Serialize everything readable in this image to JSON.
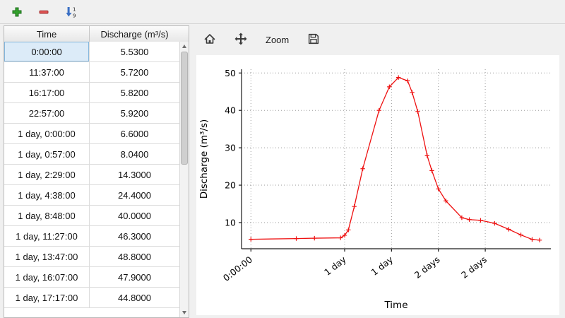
{
  "window": {
    "bg": "#f0f0f0",
    "accent_selection": "#dcebf8",
    "line_color": "#ee1111"
  },
  "toolbar": {
    "buttons": [
      {
        "icon": "add-row-icon"
      },
      {
        "icon": "remove-row-icon"
      },
      {
        "icon": "sort-rows-icon"
      }
    ]
  },
  "table": {
    "columns": [
      "Time",
      "Discharge (m³/s)"
    ],
    "selected_row_index": 0,
    "rows": [
      [
        "0:00:00",
        "5.5300"
      ],
      [
        "11:37:00",
        "5.7200"
      ],
      [
        "16:17:00",
        "5.8200"
      ],
      [
        "22:57:00",
        "5.9200"
      ],
      [
        "1 day, 0:00:00",
        "6.6000"
      ],
      [
        "1 day, 0:57:00",
        "8.0400"
      ],
      [
        "1 day, 2:29:00",
        "14.3000"
      ],
      [
        "1 day, 4:38:00",
        "24.4000"
      ],
      [
        "1 day, 8:48:00",
        "40.0000"
      ],
      [
        "1 day, 11:27:00",
        "46.3000"
      ],
      [
        "1 day, 13:47:00",
        "48.8000"
      ],
      [
        "1 day, 16:07:00",
        "47.9000"
      ],
      [
        "1 day, 17:17:00",
        "44.8000"
      ]
    ]
  },
  "chart_toolbar": {
    "zoom_label": "Zoom",
    "buttons": [
      {
        "icon": "home-icon"
      },
      {
        "icon": "pan-icon"
      },
      {
        "label": "Zoom"
      },
      {
        "icon": "save-icon"
      }
    ]
  },
  "chart_data": {
    "type": "line",
    "title": "",
    "xlabel": "Time",
    "ylabel": "Discharge (m³/s)",
    "line_color": "#ee1111",
    "marker": "+",
    "grid": "dotted",
    "legend": "none",
    "xlim": [
      -0.1,
      3.2
    ],
    "ylim": [
      3,
      51
    ],
    "xticks": [
      0,
      1,
      1.5,
      2,
      2.5
    ],
    "xticklabels": [
      "0:00:00",
      "1 day",
      "1 day",
      "2 days",
      "2 days"
    ],
    "yticks": [
      10,
      20,
      30,
      40,
      50
    ],
    "x": [
      0,
      0.484,
      0.678,
      0.956,
      1.0,
      1.04,
      1.103,
      1.193,
      1.367,
      1.477,
      1.574,
      1.672,
      1.72,
      1.78,
      1.88,
      1.93,
      2.0,
      2.08,
      2.25,
      2.33,
      2.45,
      2.6,
      2.75,
      2.88,
      3.0,
      3.08
    ],
    "y": [
      5.53,
      5.72,
      5.82,
      5.92,
      6.6,
      8.04,
      14.3,
      24.4,
      40.0,
      46.3,
      48.8,
      47.9,
      44.8,
      39.7,
      27.9,
      23.9,
      19.0,
      15.8,
      11.3,
      10.8,
      10.6,
      9.8,
      8.2,
      6.7,
      5.5,
      5.3
    ]
  }
}
